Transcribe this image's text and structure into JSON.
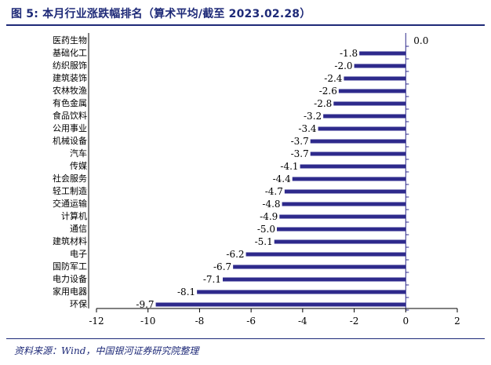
{
  "header": {
    "title": "图 5: 本月行业涨跌幅排名（算术平均/截至 2023.02.28）"
  },
  "footer": {
    "source": "资料来源：Wind，中国银河证券研究院整理"
  },
  "colors": {
    "bar": "#2e2a8c",
    "header": "#1e2a78"
  },
  "chart_data": {
    "type": "bar",
    "orientation": "horizontal",
    "title": "本月行业涨跌幅排名（算术平均/截至 2023.02.28）",
    "categories": [
      "医药生物",
      "基础化工",
      "纺织服饰",
      "建筑装饰",
      "农林牧渔",
      "有色金属",
      "食品饮料",
      "公用事业",
      "机械设备",
      "汽车",
      "传媒",
      "社会服务",
      "轻工制造",
      "交通运输",
      "计算机",
      "通信",
      "建筑材料",
      "电子",
      "国防军工",
      "电力设备",
      "家用电器",
      "环保"
    ],
    "values": [
      0.0,
      -1.8,
      -2.0,
      -2.4,
      -2.6,
      -2.8,
      -3.2,
      -3.4,
      -3.7,
      -3.7,
      -4.1,
      -4.4,
      -4.7,
      -4.8,
      -4.9,
      -5.0,
      -5.1,
      -6.2,
      -6.7,
      -7.1,
      -8.1,
      -9.7
    ],
    "value_labels": [
      "0.0",
      "-1.8",
      "-2.0",
      "-2.4",
      "-2.6",
      "-2.8",
      "-3.2",
      "-3.4",
      "-3.7",
      "-3.7",
      "-4.1",
      "-4.4",
      "-4.7",
      "-4.8",
      "-4.9",
      "-5.0",
      "-5.1",
      "-6.2",
      "-6.7",
      "-7.1",
      "-8.1",
      "-9.7"
    ],
    "xlim": [
      -12,
      2
    ],
    "xticks": [
      -12,
      -10,
      -8,
      -6,
      -4,
      -2,
      0,
      2
    ],
    "xtick_labels": [
      "-12",
      "-10",
      "-8",
      "-6",
      "-4",
      "-2",
      "0",
      "2"
    ],
    "grid": false,
    "legend": "none"
  }
}
